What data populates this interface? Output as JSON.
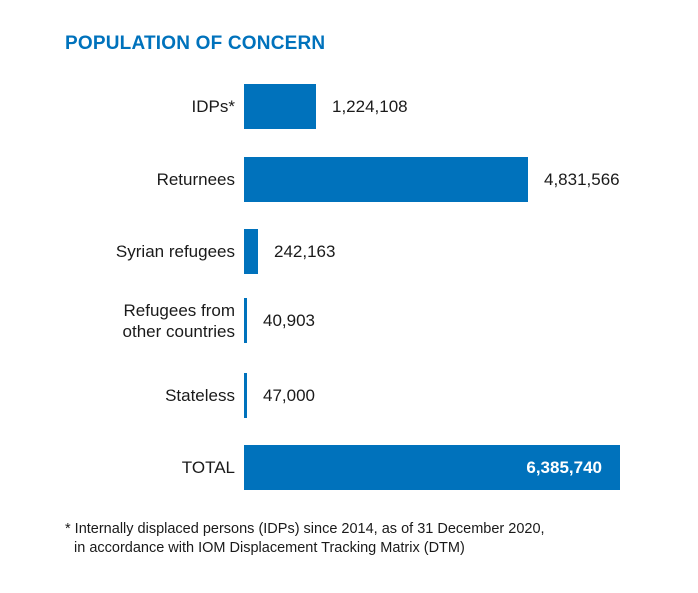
{
  "chart_data": {
    "type": "bar",
    "orientation": "horizontal",
    "title": "POPULATION OF CONCERN",
    "categories": [
      "IDPs*",
      "Returnees",
      "Syrian refugees",
      "Refugees from other countries",
      "Stateless",
      "TOTAL"
    ],
    "category_lines": [
      [
        "IDPs*"
      ],
      [
        "Returnees"
      ],
      [
        "Syrian refugees"
      ],
      [
        "Refugees from",
        "other countries"
      ],
      [
        "Stateless"
      ],
      [
        "TOTAL"
      ]
    ],
    "values": [
      1224108,
      4831566,
      242163,
      40903,
      47000,
      6385740
    ],
    "value_labels": [
      "1,224,108",
      "4,831,566",
      "242,163",
      "40,903",
      "47,000",
      "6,385,740"
    ],
    "xlabel": "",
    "ylabel": "",
    "xlim": [
      0,
      6385740
    ],
    "grid": false,
    "bar_color": "#0072bc"
  },
  "footnote": {
    "line1": "* Internally displaced persons (IDPs) since 2014, as of 31 December 2020,",
    "line2": "in accordance with IOM Displacement Tracking Matrix (DTM)"
  }
}
